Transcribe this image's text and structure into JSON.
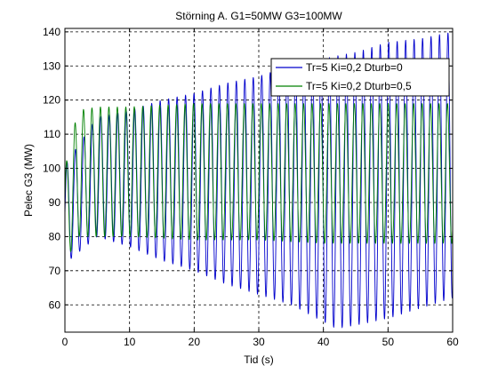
{
  "chart_data": {
    "type": "line",
    "title": "Störning A. G1=50MW G3=100MW",
    "xlabel": "Tid (s)",
    "ylabel": "Pelec G3 (MW)",
    "xlim": [
      0,
      60
    ],
    "ylim": [
      52,
      141
    ],
    "xticks": [
      0,
      10,
      20,
      30,
      40,
      50,
      60
    ],
    "xtick_labels": [
      "0",
      "10",
      "20",
      "30",
      "40",
      "50",
      "60"
    ],
    "yticks": [
      60,
      70,
      80,
      90,
      100,
      110,
      120,
      130,
      140
    ],
    "ytick_labels": [
      "60",
      "70",
      "80",
      "90",
      "100",
      "110",
      "120",
      "130",
      "140"
    ],
    "grid": true,
    "legend_position": "top-right",
    "oscillation_period_s": 1.31,
    "series": [
      {
        "name": "Tr=5 Ki=0,2 Dturb=0",
        "color": "#0000cc",
        "envelope_time_s": [
          0,
          5,
          10,
          15,
          20,
          25,
          30,
          35,
          40,
          42,
          45,
          50,
          55,
          60
        ],
        "envelope_max": [
          101,
          115,
          117,
          120,
          122,
          125,
          127,
          130,
          132,
          133,
          134,
          137,
          138,
          140
        ],
        "envelope_min": [
          72,
          80,
          77,
          73,
          70,
          66,
          63,
          60,
          55,
          53,
          54,
          56,
          59,
          62
        ]
      },
      {
        "name": "Tr=5 Ki=0,2 Dturb=0,5",
        "color": "#008000",
        "envelope_time_s": [
          0,
          2,
          5,
          10,
          20,
          30,
          40,
          50,
          60
        ],
        "envelope_max": [
          100,
          117,
          118,
          118,
          119,
          119,
          119,
          119,
          119
        ],
        "envelope_min": [
          72,
          80,
          80,
          80,
          79,
          79,
          78,
          78,
          78
        ]
      }
    ]
  }
}
